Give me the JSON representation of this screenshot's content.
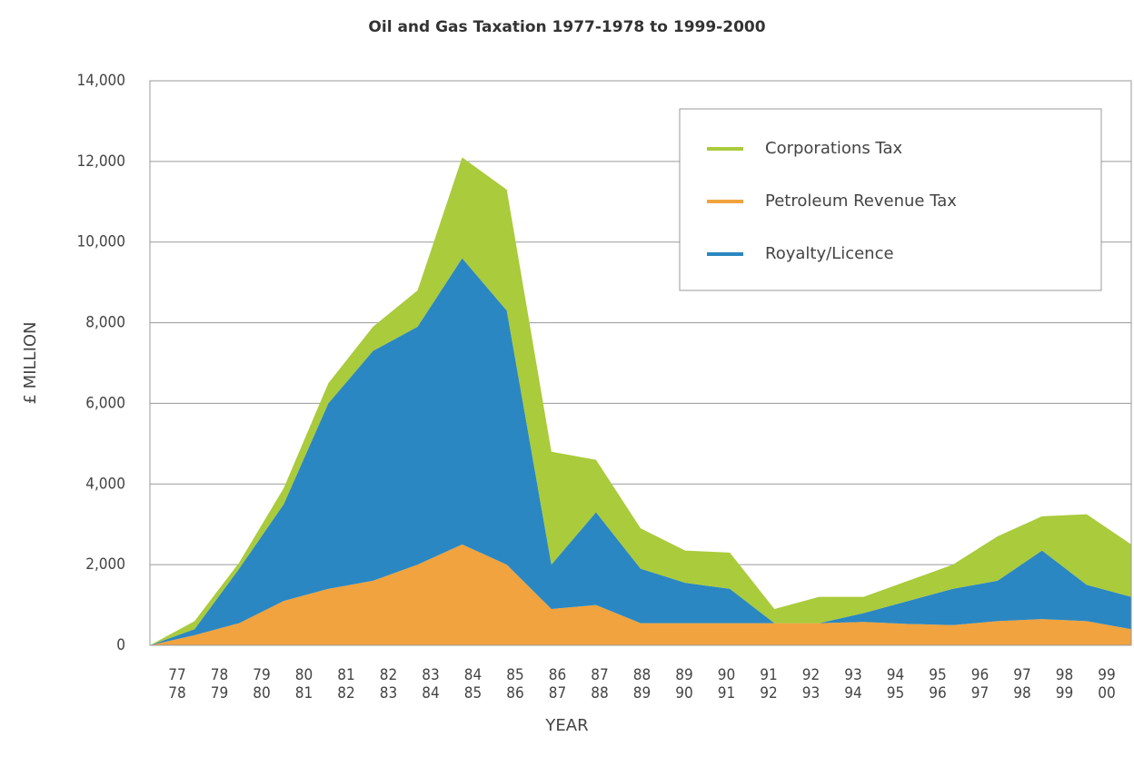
{
  "chart_data": {
    "type": "stacked_area",
    "title": "Oil and Gas Taxation 1977-1978 to 1999-2000",
    "x_label": "YEAR",
    "y_label": "£ MILLION",
    "categories": [
      [
        "77",
        "78"
      ],
      [
        "78",
        "79"
      ],
      [
        "79",
        "80"
      ],
      [
        "80",
        "81"
      ],
      [
        "81",
        "82"
      ],
      [
        "82",
        "83"
      ],
      [
        "83",
        "84"
      ],
      [
        "84",
        "85"
      ],
      [
        "85",
        "86"
      ],
      [
        "86",
        "87"
      ],
      [
        "87",
        "88"
      ],
      [
        "88",
        "89"
      ],
      [
        "89",
        "90"
      ],
      [
        "90",
        "91"
      ],
      [
        "91",
        "92"
      ],
      [
        "92",
        "93"
      ],
      [
        "93",
        "94"
      ],
      [
        "94",
        "95"
      ],
      [
        "95",
        "96"
      ],
      [
        "96",
        "97"
      ],
      [
        "97",
        "98"
      ],
      [
        "98",
        "99"
      ],
      [
        "99",
        "00"
      ]
    ],
    "series": [
      {
        "name": "Petroleum Revenue Tax",
        "color": "#f0a33e",
        "values": [
          0,
          250,
          550,
          1100,
          1400,
          1600,
          2000,
          2500,
          2000,
          900,
          1000,
          550,
          550,
          550,
          550,
          550,
          580,
          530,
          500,
          600,
          650,
          600,
          400
        ]
      },
      {
        "name": "Royalty/Licence",
        "color": "#2b87c1",
        "values": [
          0,
          150,
          1350,
          2400,
          4600,
          5700,
          5900,
          7100,
          6300,
          1100,
          2300,
          1350,
          1000,
          850,
          0,
          0,
          220,
          570,
          900,
          1000,
          1700,
          900,
          800
        ]
      },
      {
        "name": "Corporations Tax",
        "color": "#aacb3b",
        "values": [
          0,
          200,
          150,
          400,
          500,
          600,
          900,
          2500,
          3000,
          2800,
          1300,
          1000,
          800,
          900,
          350,
          650,
          400,
          500,
          600,
          1100,
          850,
          1750,
          1300
        ]
      }
    ],
    "ylim": [
      0,
      14000
    ],
    "yticks": [
      0,
      {
        "value": 2000,
        "label": "2,000"
      },
      {
        "value": 4000,
        "label": "4,000"
      },
      {
        "value": 6000,
        "label": "6,000"
      },
      {
        "value": 8000,
        "label": "8,000"
      },
      {
        "value": 10000,
        "label": "10,000"
      },
      {
        "value": 12000,
        "label": "12,000"
      },
      {
        "value": 14000,
        "label": "14,000"
      }
    ],
    "grid": true
  }
}
